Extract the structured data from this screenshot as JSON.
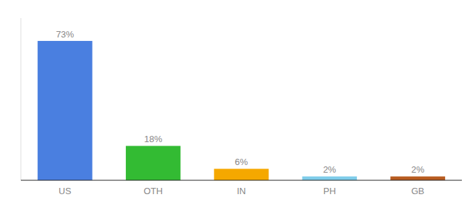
{
  "chart_data": {
    "type": "bar",
    "categories": [
      "US",
      "OTH",
      "IN",
      "PH",
      "GB"
    ],
    "values": [
      73,
      18,
      6,
      2,
      2
    ],
    "value_labels": [
      "73%",
      "18%",
      "6%",
      "2%",
      "2%"
    ],
    "colors": [
      "#4a7fe0",
      "#33bb33",
      "#f5a800",
      "#7eccea",
      "#b85c20"
    ],
    "ylim": [
      0,
      85
    ],
    "data_labels": true,
    "tick_labels": "x",
    "grid": false
  }
}
